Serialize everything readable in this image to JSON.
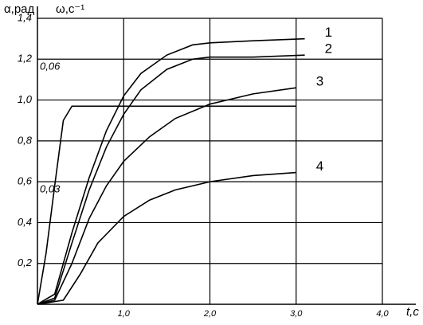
{
  "chart_data": {
    "type": "line",
    "y_label": "α,рад",
    "y2_label": "ω,с⁻¹",
    "x_label": "t,c",
    "xlim": [
      0,
      4
    ],
    "ylim": [
      0,
      1.4
    ],
    "y2lim": [
      0,
      0.07
    ],
    "xticks": [
      {
        "value": 1,
        "label": "1,0"
      },
      {
        "value": 2,
        "label": "2,0"
      },
      {
        "value": 3,
        "label": "3,0"
      },
      {
        "value": 4,
        "label": "4,0"
      }
    ],
    "yticks": [
      {
        "value": 0.2,
        "label": "0,2"
      },
      {
        "value": 0.4,
        "label": "0,4"
      },
      {
        "value": 0.6,
        "label": "0,6"
      },
      {
        "value": 0.8,
        "label": "0,8"
      },
      {
        "value": 1.0,
        "label": "1,0"
      },
      {
        "value": 1.2,
        "label": "1,2"
      },
      {
        "value": 1.4,
        "label": "1,4"
      }
    ],
    "y2ticks": [
      {
        "value": 0.03,
        "label": "0,03"
      },
      {
        "value": 0.06,
        "label": "0,06"
      }
    ],
    "grid": true,
    "color": "#000000",
    "series": [
      {
        "x": [
          0,
          0.1,
          0.2,
          0.3,
          0.4,
          0.5,
          1,
          2,
          3
        ],
        "values": [
          0,
          0.25,
          0.58,
          0.9,
          0.97,
          0.97,
          0.97,
          0.97,
          0.97
        ]
      },
      {
        "name": "1",
        "x": [
          0,
          0.2,
          0.4,
          0.6,
          0.8,
          1.0,
          1.2,
          1.5,
          1.8,
          2.0,
          2.5,
          3.1
        ],
        "values": [
          0,
          0.05,
          0.35,
          0.62,
          0.85,
          1.02,
          1.13,
          1.22,
          1.27,
          1.28,
          1.29,
          1.3
        ]
      },
      {
        "name": "2",
        "x": [
          0,
          0.2,
          0.4,
          0.6,
          0.8,
          1.0,
          1.2,
          1.5,
          1.8,
          2.0,
          2.5,
          3.1
        ],
        "values": [
          0,
          0.03,
          0.3,
          0.56,
          0.77,
          0.93,
          1.05,
          1.15,
          1.2,
          1.21,
          1.21,
          1.22
        ]
      },
      {
        "name": "3",
        "x": [
          0,
          0.2,
          0.4,
          0.6,
          0.8,
          1.0,
          1.3,
          1.6,
          2.0,
          2.5,
          3.0
        ],
        "values": [
          0,
          0.02,
          0.2,
          0.42,
          0.58,
          0.7,
          0.82,
          0.91,
          0.98,
          1.03,
          1.06
        ]
      },
      {
        "name": "4",
        "x": [
          0,
          0.3,
          0.5,
          0.7,
          1.0,
          1.3,
          1.6,
          2.0,
          2.5,
          3.0
        ],
        "values": [
          0,
          0.02,
          0.15,
          0.3,
          0.43,
          0.51,
          0.56,
          0.6,
          0.63,
          0.645
        ]
      }
    ]
  }
}
